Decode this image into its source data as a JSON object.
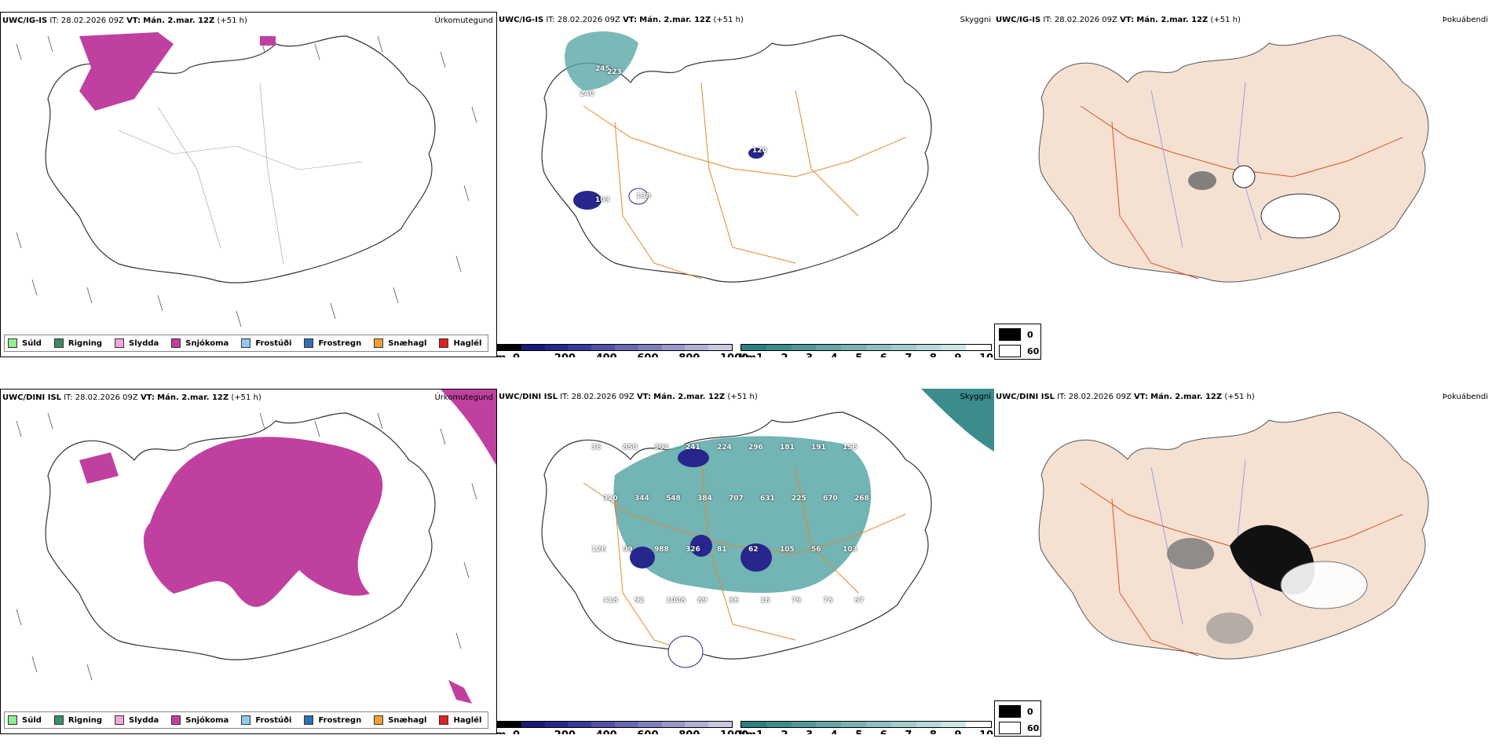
{
  "rows": [
    {
      "model": "UWC/IG-IS",
      "panels": [
        {
          "title": "Úrkomutegund",
          "it": "IT: 28.02.2026 09Z",
          "vt_label": "VT:",
          "vt": "Mán. 2.mar. 12Z",
          "lead": "(+51 h)"
        },
        {
          "title": "Skyggni",
          "it": "IT: 28.02.2026 09Z",
          "vt_label": "VT:",
          "vt": "Mán. 2.mar. 12Z",
          "lead": "(+51 h)",
          "labels": [
            "245",
            "223",
            "240",
            "120",
            "103",
            "138"
          ]
        },
        {
          "title": "Þokuábendi",
          "it": "IT: 28.02.2026 09Z",
          "vt_label": "VT:",
          "vt": "Mán. 2.mar. 12Z",
          "lead": "(+51 h)"
        }
      ]
    },
    {
      "model": "UWC/DINI ISL",
      "panels": [
        {
          "title": "Úrkomutegund",
          "it": "IT: 28.02.2026 09Z",
          "vt_label": "VT:",
          "vt": "Mán. 2.mar. 12Z",
          "lead": "(+51 h)"
        },
        {
          "title": "Skyggni",
          "it": "IT: 28.02.2026 09Z",
          "vt_label": "VT:",
          "vt": "Mán. 2.mar. 12Z",
          "lead": "(+51 h)",
          "labels": [
            "36",
            "858",
            "302",
            "241",
            "224",
            "296",
            "181",
            "191",
            "156",
            "320",
            "344",
            "548",
            "384",
            "707",
            "631",
            "225",
            "670",
            "268",
            "126",
            "09",
            "988",
            "326",
            "81",
            "62",
            "105",
            "56",
            "103",
            "418",
            "92",
            "1008",
            "89",
            "36",
            "16",
            "79",
            "76",
            "67"
          ]
        },
        {
          "title": "Þokuábendi",
          "it": "IT: 28.02.2026 09Z",
          "vt_label": "VT:",
          "vt": "Mán. 2.mar. 12Z",
          "lead": "(+51 h)"
        }
      ]
    }
  ],
  "precip_legend": [
    {
      "label": "Súld",
      "color": "#90ee90"
    },
    {
      "label": "Rigning",
      "color": "#3c8c64"
    },
    {
      "label": "Slydda",
      "color": "#f0a8d8"
    },
    {
      "label": "Snjókoma",
      "color": "#c040a0"
    },
    {
      "label": "Frostúði",
      "color": "#90c8f0"
    },
    {
      "label": "Frostregn",
      "color": "#3070b0"
    },
    {
      "label": "Snæhagl",
      "color": "#f0a030"
    },
    {
      "label": "Haglél",
      "color": "#e02020"
    }
  ],
  "elevation_colorbar": {
    "unit": "m",
    "ticks": [
      "0",
      "200",
      "400",
      "600",
      "800",
      "1000"
    ],
    "colors": [
      "#000000",
      "#1a1a7a",
      "#26268c",
      "#3a3a9a",
      "#5050a8",
      "#6868b4",
      "#8080c0",
      "#9898cc",
      "#b0b0d8",
      "#c8c8e4"
    ]
  },
  "visibility_colorbar": {
    "unit": "km",
    "ticks": [
      "1",
      "2",
      "3",
      "4",
      "5",
      "6",
      "7",
      "8",
      "9",
      "10"
    ],
    "colors": [
      "#2a7f7f",
      "#3d8c8c",
      "#519999",
      "#66a6a6",
      "#7ab3b3",
      "#8fc0c0",
      "#a3cccc",
      "#b8d9d9",
      "#cce6e6",
      "#ffffff"
    ]
  },
  "fog_legend": [
    {
      "label": "0",
      "color": "#000000"
    },
    {
      "label": "60",
      "color": "#ffffff"
    }
  ]
}
